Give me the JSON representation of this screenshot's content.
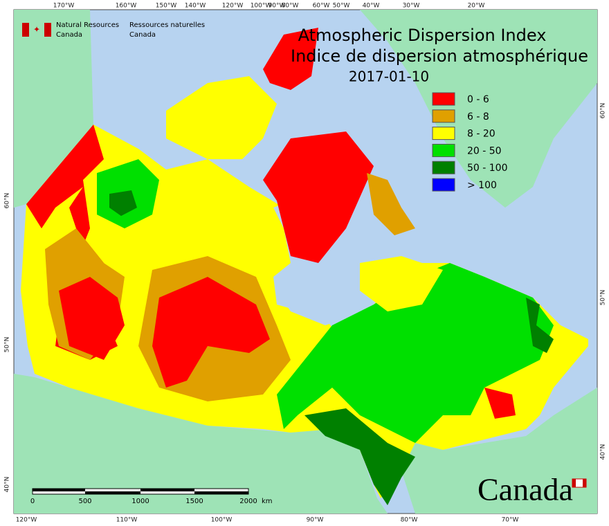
{
  "header": {
    "agency_en": [
      "Natural Resources",
      "Canada"
    ],
    "agency_fr": [
      "Ressources naturelles",
      "Canada"
    ]
  },
  "title": [
    "Atmospheric Dispersion Index",
    "Indice de dispersion atmosphérique",
    "2017-01-10"
  ],
  "legend": [
    {
      "label": "0 - 6",
      "color": "#ff0000"
    },
    {
      "label": "6 - 8",
      "color": "#e0a000"
    },
    {
      "label": "8 - 20",
      "color": "#ffff00"
    },
    {
      "label": "20 - 50",
      "color": "#00e000"
    },
    {
      "label": "50 - 100",
      "color": "#008000"
    },
    {
      "label": "> 100",
      "color": "#0000ff"
    }
  ],
  "graticule": {
    "top": [
      "170°W",
      "160°W",
      "150°W",
      "140°W",
      "120°W",
      "100°W",
      "90°W",
      "80°W",
      "60°W",
      "50°W",
      "40°W",
      "30°W",
      "20°W"
    ],
    "bottom": [
      "120°W",
      "110°W",
      "100°W",
      "90°W",
      "80°W",
      "70°W"
    ],
    "left": [
      "60°N",
      "50°N",
      "40°N"
    ],
    "right": [
      "60°N",
      "50°N",
      "40°N"
    ]
  },
  "scale_bar": {
    "labels": [
      "0",
      "500",
      "1000",
      "1500",
      "2000"
    ],
    "unit": "km"
  },
  "wordmark": "Canada"
}
